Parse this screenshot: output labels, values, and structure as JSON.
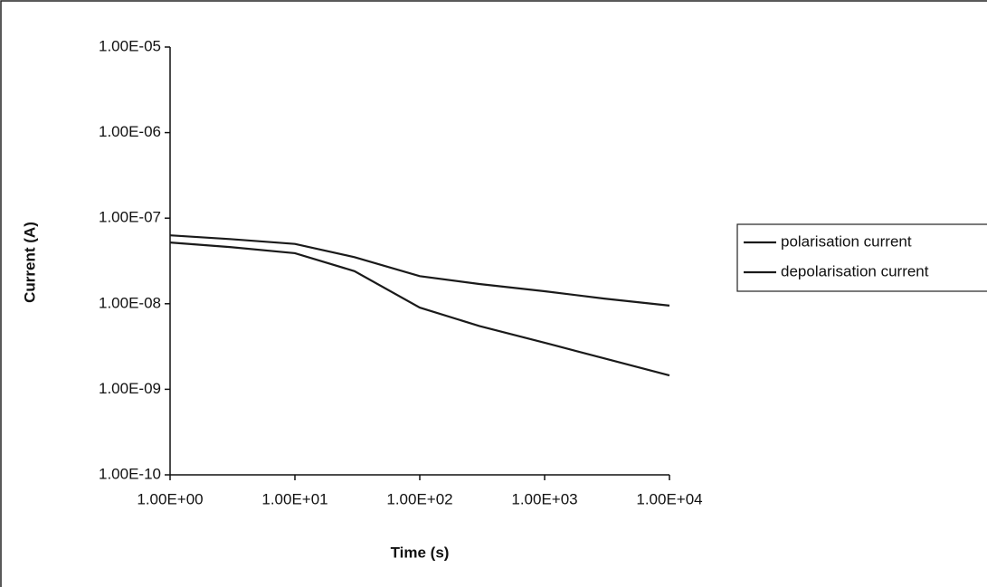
{
  "chart_data": {
    "type": "line",
    "x_label": "Time (s)",
    "y_label": "Current (A)",
    "x": [
      1,
      3,
      10,
      30,
      100,
      300,
      1000,
      3000,
      10000
    ],
    "series": [
      {
        "name": "polarisation current",
        "color": "#1a1a1a",
        "values": [
          6.3e-08,
          5.7e-08,
          5e-08,
          3.5e-08,
          2.1e-08,
          1.7e-08,
          1.4e-08,
          1.15e-08,
          9.5e-09
        ]
      },
      {
        "name": "depolarisation current",
        "color": "#1a1a1a",
        "values": [
          5.2e-08,
          4.6e-08,
          3.9e-08,
          2.4e-08,
          9e-09,
          5.5e-09,
          3.5e-09,
          2.3e-09,
          1.45e-09
        ]
      }
    ],
    "xscale": "log",
    "yscale": "log",
    "xlim": [
      1,
      10000
    ],
    "xticks": [
      {
        "value": 1,
        "label": "1.00E+00"
      },
      {
        "value": 10,
        "label": "1.00E+01"
      },
      {
        "value": 100,
        "label": "1.00E+02"
      },
      {
        "value": 1000,
        "label": "1.00E+03"
      },
      {
        "value": 10000,
        "label": "1.00E+04"
      }
    ],
    "ylim": [
      1e-10,
      1e-05
    ],
    "yticks": [
      {
        "value": 1e-10,
        "label": "1.00E-10"
      },
      {
        "value": 1e-09,
        "label": "1.00E-09"
      },
      {
        "value": 1e-08,
        "label": "1.00E-08"
      },
      {
        "value": 1e-07,
        "label": "1.00E-07"
      },
      {
        "value": 1e-06,
        "label": "1.00E-06"
      },
      {
        "value": 1e-05,
        "label": "1.00E-05"
      }
    ],
    "grid": false,
    "legend": "right"
  }
}
